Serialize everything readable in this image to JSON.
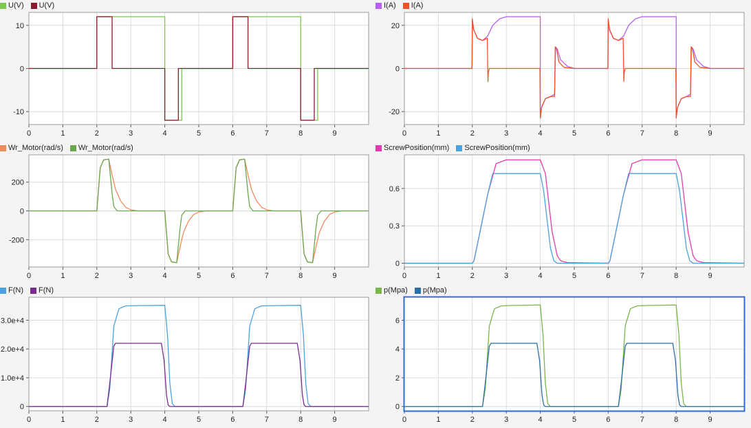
{
  "chart_data": [
    {
      "type": "line",
      "title": "",
      "xlabel": "",
      "ylabel": "",
      "xlim": [
        0,
        10
      ],
      "ylim": [
        -13,
        13
      ],
      "xticks": [
        "0",
        "1",
        "2",
        "3",
        "4",
        "5",
        "6",
        "7",
        "8",
        "9"
      ],
      "yticks": [
        {
          "v": 10,
          "label": "10"
        },
        {
          "v": 0,
          "label": "0"
        },
        {
          "v": -10,
          "label": "-10"
        }
      ],
      "series": [
        {
          "name": "U(V)",
          "color": "#7ec850",
          "x": [
            0,
            2,
            2,
            4,
            4,
            4.5,
            4.5,
            6,
            6,
            8,
            8,
            8.5,
            8.5,
            10
          ],
          "y": [
            0,
            0,
            12,
            12,
            -12,
            -12,
            0,
            0,
            12,
            12,
            -12,
            -12,
            0,
            0
          ]
        },
        {
          "name": "U(V)",
          "color": "#8b1a2e",
          "x": [
            0,
            2,
            2,
            2.45,
            2.45,
            4,
            4,
            4.4,
            4.4,
            6,
            6,
            6.45,
            6.45,
            8,
            8,
            8.4,
            8.4,
            10
          ],
          "y": [
            0,
            0,
            12,
            12,
            0,
            0,
            -12,
            -12,
            0,
            0,
            12,
            12,
            0,
            0,
            -12,
            -12,
            0,
            0
          ]
        }
      ]
    },
    {
      "type": "line",
      "title": "",
      "xlabel": "",
      "ylabel": "",
      "xlim": [
        0,
        10
      ],
      "ylim": [
        -26,
        26
      ],
      "xticks": [
        "0",
        "1",
        "2",
        "3",
        "4",
        "5",
        "6",
        "7",
        "8",
        "9"
      ],
      "yticks": [
        {
          "v": 20,
          "label": "20"
        },
        {
          "v": 0,
          "label": "0"
        },
        {
          "v": -20,
          "label": "-20"
        }
      ],
      "series": [
        {
          "name": "I(A)",
          "color": "#b561f0",
          "x": [
            0,
            1.99,
            2.0,
            2.04,
            2.15,
            2.3,
            2.45,
            2.6,
            2.8,
            3.0,
            3.5,
            4.0,
            4.0,
            4.04,
            4.15,
            4.3,
            4.42,
            4.45,
            4.5,
            4.6,
            4.8,
            5.0,
            5.99,
            6.0,
            6.04,
            6.15,
            6.3,
            6.45,
            6.6,
            6.8,
            7.0,
            7.5,
            8.0,
            8.0,
            8.04,
            8.15,
            8.3,
            8.42,
            8.45,
            8.5,
            8.6,
            8.8,
            9.0,
            10
          ],
          "y": [
            0,
            0,
            22,
            18,
            14,
            13,
            15,
            20,
            23,
            24,
            24,
            24,
            -22,
            -18,
            -14,
            -13,
            -12,
            10,
            9,
            4,
            1,
            0,
            0,
            22,
            18,
            14,
            13,
            15,
            20,
            23,
            24,
            24,
            24,
            -22,
            -18,
            -14,
            -13,
            -12,
            10,
            9,
            4,
            1,
            0,
            0
          ]
        },
        {
          "name": "I(A)",
          "color": "#f0522a",
          "x": [
            0,
            1.99,
            2.0,
            2.04,
            2.15,
            2.3,
            2.44,
            2.46,
            2.47,
            2.5,
            3.0,
            3.99,
            4.0,
            4.04,
            4.15,
            4.3,
            4.42,
            4.44,
            4.48,
            4.55,
            4.7,
            5.0,
            5.99,
            6.0,
            6.04,
            6.15,
            6.3,
            6.44,
            6.46,
            6.47,
            6.5,
            7.0,
            7.99,
            8.0,
            8.04,
            8.15,
            8.3,
            8.42,
            8.44,
            8.48,
            8.55,
            8.7,
            9.0,
            10
          ],
          "y": [
            0,
            0,
            23,
            18,
            14,
            13,
            14,
            -6,
            -2,
            0,
            0,
            0,
            -23,
            -18,
            -14,
            -13,
            -13,
            10,
            9,
            3,
            0.5,
            0,
            0,
            23,
            18,
            14,
            13,
            14,
            -6,
            -2,
            0,
            0,
            0,
            -23,
            -18,
            -14,
            -13,
            -13,
            10,
            9,
            3,
            0.5,
            0,
            0
          ]
        }
      ]
    },
    {
      "type": "line",
      "title": "",
      "xlabel": "",
      "ylabel": "",
      "xlim": [
        0,
        10
      ],
      "ylim": [
        -390,
        390
      ],
      "xticks": [
        "0",
        "1",
        "2",
        "3",
        "4",
        "5",
        "6",
        "7",
        "8",
        "9"
      ],
      "yticks": [
        {
          "v": 200,
          "label": "200"
        },
        {
          "v": 0,
          "label": "0"
        },
        {
          "v": -200,
          "label": "-200"
        }
      ],
      "series": [
        {
          "name": "Wr_Motor(rad/s)",
          "color": "#f08a5a",
          "x": [
            0,
            2,
            2.1,
            2.2,
            2.35,
            2.45,
            2.55,
            2.7,
            2.85,
            3.0,
            3.2,
            4.0,
            4.1,
            4.2,
            4.35,
            4.45,
            4.55,
            4.7,
            4.85,
            5.0,
            5.2,
            6.0,
            6.1,
            6.2,
            6.35,
            6.45,
            6.55,
            6.7,
            6.85,
            7.0,
            7.2,
            8.0,
            8.1,
            8.2,
            8.35,
            8.45,
            8.55,
            8.7,
            8.85,
            9.0,
            9.2,
            10
          ],
          "y": [
            0,
            0,
            300,
            355,
            360,
            250,
            150,
            70,
            25,
            8,
            0,
            0,
            -300,
            -355,
            -360,
            -250,
            -150,
            -70,
            -25,
            -8,
            0,
            0,
            300,
            355,
            360,
            250,
            150,
            70,
            25,
            8,
            0,
            0,
            -300,
            -355,
            -360,
            -250,
            -150,
            -70,
            -25,
            -8,
            0,
            0
          ]
        },
        {
          "name": "Wr_Motor(rad/s)",
          "color": "#6aa84f",
          "x": [
            0,
            2,
            2.1,
            2.2,
            2.35,
            2.45,
            2.5,
            2.6,
            2.8,
            4.0,
            4.1,
            4.2,
            4.35,
            4.45,
            4.5,
            4.6,
            4.8,
            6.0,
            6.1,
            6.2,
            6.35,
            6.45,
            6.5,
            6.6,
            6.8,
            8.0,
            8.1,
            8.2,
            8.35,
            8.45,
            8.5,
            8.6,
            8.8,
            10
          ],
          "y": [
            0,
            0,
            300,
            355,
            360,
            120,
            30,
            0,
            0,
            0,
            -300,
            -355,
            -360,
            -120,
            -30,
            0,
            0,
            0,
            300,
            355,
            360,
            120,
            30,
            0,
            0,
            0,
            -300,
            -355,
            -360,
            -120,
            -30,
            0,
            0,
            0
          ]
        }
      ]
    },
    {
      "type": "line",
      "title": "",
      "xlabel": "",
      "ylabel": "",
      "xlim": [
        0,
        10
      ],
      "ylim": [
        -0.03,
        0.87
      ],
      "xticks": [
        "0",
        "1",
        "2",
        "3",
        "4",
        "5",
        "6",
        "7",
        "8",
        "9"
      ],
      "yticks": [
        {
          "v": 0.6,
          "label": "0.6"
        },
        {
          "v": 0.3,
          "label": "0.3"
        },
        {
          "v": 0,
          "label": "0"
        }
      ],
      "series": [
        {
          "name": "ScrewPosition(mm)",
          "color": "#e23bb0",
          "x": [
            0,
            2.0,
            2.05,
            2.45,
            2.7,
            3.0,
            4.0,
            4.15,
            4.35,
            4.5,
            4.6,
            4.8,
            6.0,
            6.05,
            6.45,
            6.7,
            7.0,
            8.0,
            8.15,
            8.35,
            8.5,
            8.6,
            8.8,
            10
          ],
          "y": [
            0,
            0,
            0.02,
            0.55,
            0.8,
            0.83,
            0.83,
            0.72,
            0.25,
            0.06,
            0.02,
            0.005,
            0,
            0.02,
            0.55,
            0.8,
            0.83,
            0.83,
            0.72,
            0.25,
            0.06,
            0.02,
            0.005,
            0
          ]
        },
        {
          "name": "ScrewPosition(mm)",
          "color": "#4aa3e0",
          "x": [
            0,
            2.0,
            2.05,
            2.45,
            2.6,
            4.0,
            4.1,
            4.3,
            4.4,
            4.5,
            6.0,
            6.05,
            6.45,
            6.6,
            8.0,
            8.1,
            8.3,
            8.4,
            8.5,
            10
          ],
          "y": [
            0,
            0,
            0.02,
            0.55,
            0.72,
            0.72,
            0.58,
            0.12,
            0.02,
            0,
            0,
            0.02,
            0.55,
            0.72,
            0.72,
            0.58,
            0.12,
            0.02,
            0,
            0
          ]
        }
      ]
    },
    {
      "type": "line",
      "title": "",
      "xlabel": "",
      "ylabel": "",
      "xlim": [
        0,
        10
      ],
      "ylim": [
        -1500,
        38000
      ],
      "xticks": [
        "0",
        "1",
        "2",
        "3",
        "4",
        "5",
        "6",
        "7",
        "8",
        "9"
      ],
      "yticks": [
        {
          "v": 30000,
          "label": "3.0e+4"
        },
        {
          "v": 20000,
          "label": "2.0e+4"
        },
        {
          "v": 10000,
          "label": "1.0e+4"
        },
        {
          "v": 0,
          "label": "0"
        }
      ],
      "series": [
        {
          "name": "F(N)",
          "color": "#4aa3e0",
          "x": [
            0,
            2.3,
            2.38,
            2.5,
            2.65,
            2.85,
            3.2,
            4.0,
            4.08,
            4.15,
            4.22,
            4.3,
            6.3,
            6.38,
            6.5,
            6.65,
            6.85,
            7.2,
            8.0,
            8.08,
            8.15,
            8.22,
            8.3,
            10
          ],
          "y": [
            0,
            0,
            6000,
            28000,
            34000,
            35000,
            35100,
            35200,
            25000,
            8000,
            1000,
            0,
            0,
            6000,
            28000,
            34000,
            35000,
            35100,
            35200,
            25000,
            8000,
            1000,
            0,
            0
          ]
        },
        {
          "name": "F(N)",
          "color": "#7b2d8e",
          "x": [
            0,
            2.3,
            2.38,
            2.5,
            2.55,
            3.9,
            3.98,
            4.05,
            4.1,
            4.15,
            6.3,
            6.38,
            6.5,
            6.55,
            7.9,
            7.98,
            8.05,
            8.1,
            8.15,
            10
          ],
          "y": [
            0,
            0,
            8000,
            21000,
            22000,
            22000,
            16000,
            4000,
            500,
            0,
            0,
            8000,
            21000,
            22000,
            22000,
            16000,
            4000,
            500,
            0,
            0
          ]
        }
      ]
    },
    {
      "type": "line",
      "title": "",
      "xlabel": "",
      "ylabel": "",
      "xlim": [
        0,
        10
      ],
      "ylim": [
        -0.3,
        7.6
      ],
      "xticks": [
        "0",
        "1",
        "2",
        "3",
        "4",
        "5",
        "6",
        "7",
        "8",
        "9"
      ],
      "yticks": [
        {
          "v": 6,
          "label": "6"
        },
        {
          "v": 4,
          "label": "4"
        },
        {
          "v": 2,
          "label": "2"
        },
        {
          "v": 0,
          "label": "0"
        }
      ],
      "series": [
        {
          "name": "p(Mpa)",
          "color": "#7ab648",
          "x": [
            0,
            2.3,
            2.38,
            2.5,
            2.65,
            2.85,
            3.2,
            4.0,
            4.08,
            4.15,
            4.22,
            4.3,
            6.3,
            6.38,
            6.5,
            6.65,
            6.85,
            7.2,
            8.0,
            8.08,
            8.15,
            8.22,
            8.3,
            10
          ],
          "y": [
            0,
            0,
            1.2,
            5.6,
            6.8,
            7.0,
            7.03,
            7.06,
            5.0,
            1.6,
            0.2,
            0,
            0,
            1.2,
            5.6,
            6.8,
            7.0,
            7.03,
            7.06,
            5.0,
            1.6,
            0.2,
            0,
            0
          ]
        },
        {
          "name": "p(Mpa)",
          "color": "#2b6fa8",
          "x": [
            0,
            2.3,
            2.38,
            2.5,
            2.55,
            3.9,
            3.98,
            4.05,
            4.1,
            4.15,
            6.3,
            6.38,
            6.5,
            6.55,
            7.9,
            7.98,
            8.05,
            8.1,
            8.15,
            10
          ],
          "y": [
            0,
            0,
            1.6,
            4.2,
            4.4,
            4.4,
            3.2,
            0.8,
            0.1,
            0,
            0,
            1.6,
            4.2,
            4.4,
            4.4,
            3.2,
            0.8,
            0.1,
            0,
            0
          ]
        }
      ]
    }
  ]
}
